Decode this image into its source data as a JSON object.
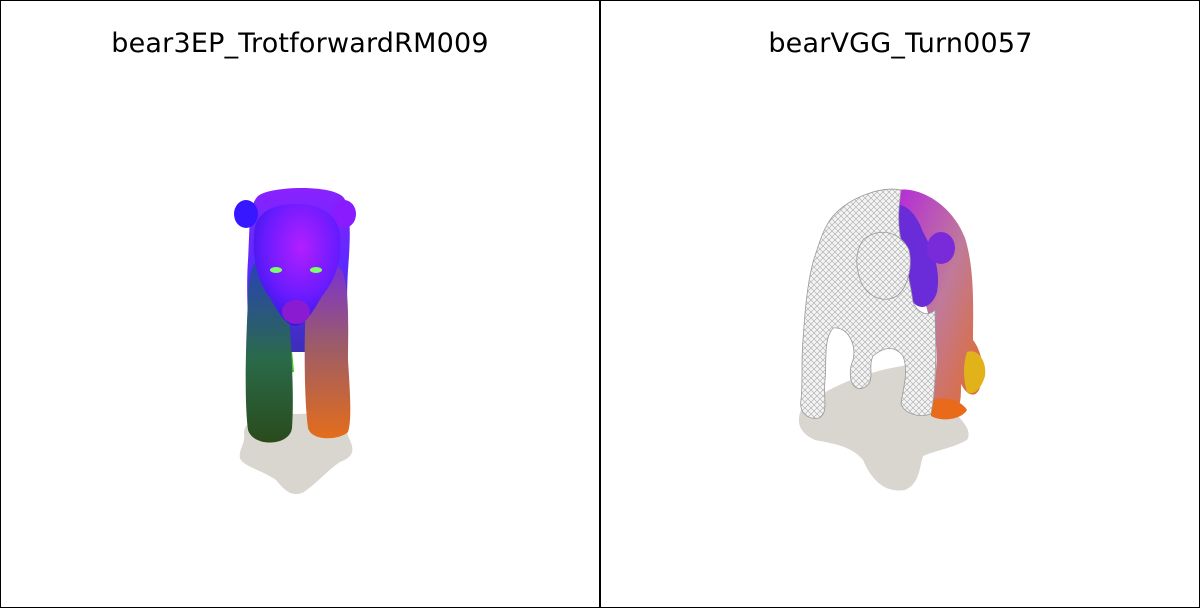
{
  "panels": [
    {
      "title": "bear3EP_TrotforwardRM009",
      "colors": {
        "shadow": "#d9d6cf",
        "head": "#7b1bff",
        "ear": "#3a18ff",
        "body": "#7a3cff",
        "leg_left": "#1f5a2a",
        "leg_right": "#e0701b"
      }
    },
    {
      "title": "bearVGG_Turn0057",
      "colors": {
        "shadow": "#d9d6cf",
        "mesh": "#bdbdbd",
        "purple": "#6a2bd9",
        "orange": "#e86a1a",
        "yellow": "#e2b21a"
      }
    }
  ]
}
